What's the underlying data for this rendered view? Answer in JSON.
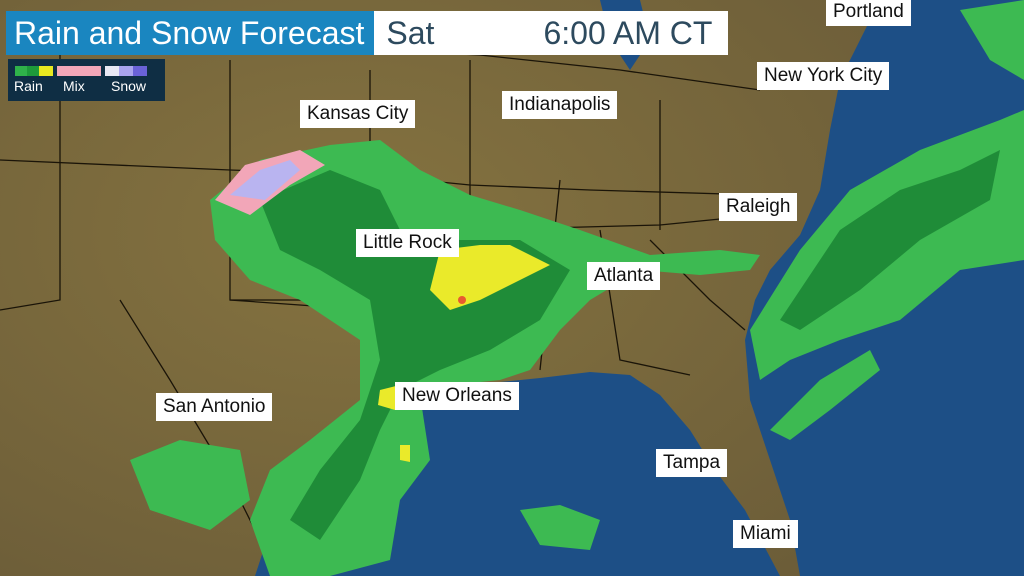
{
  "header": {
    "title": "Rain and Snow Forecast",
    "day": "Sat",
    "time": "6:00 AM CT"
  },
  "legend": {
    "labels": [
      "Rain",
      "Mix",
      "Snow"
    ],
    "colors": {
      "rain": [
        "#2fb24a",
        "#48d25a",
        "#1e9a3a",
        "#e8e820"
      ],
      "mix": [
        "#f2a6b8"
      ],
      "snow": [
        "#e8e8f4",
        "#a9a4ee",
        "#6a62d8"
      ]
    }
  },
  "cities": [
    "Portland",
    "New York City",
    "Kansas City",
    "Indianapolis",
    "Raleigh",
    "Little Rock",
    "Atlanta",
    "San Antonio",
    "New Orleans",
    "Tampa",
    "Miami"
  ],
  "colors": {
    "ocean": "#1d4f86",
    "land": "#7a6a3e",
    "rain": "#3dba52",
    "heavy_rain": "#1f8c38",
    "yellow": "#eaea2a",
    "mix": "#f2a6b8",
    "snow": "#b9b4f0"
  }
}
